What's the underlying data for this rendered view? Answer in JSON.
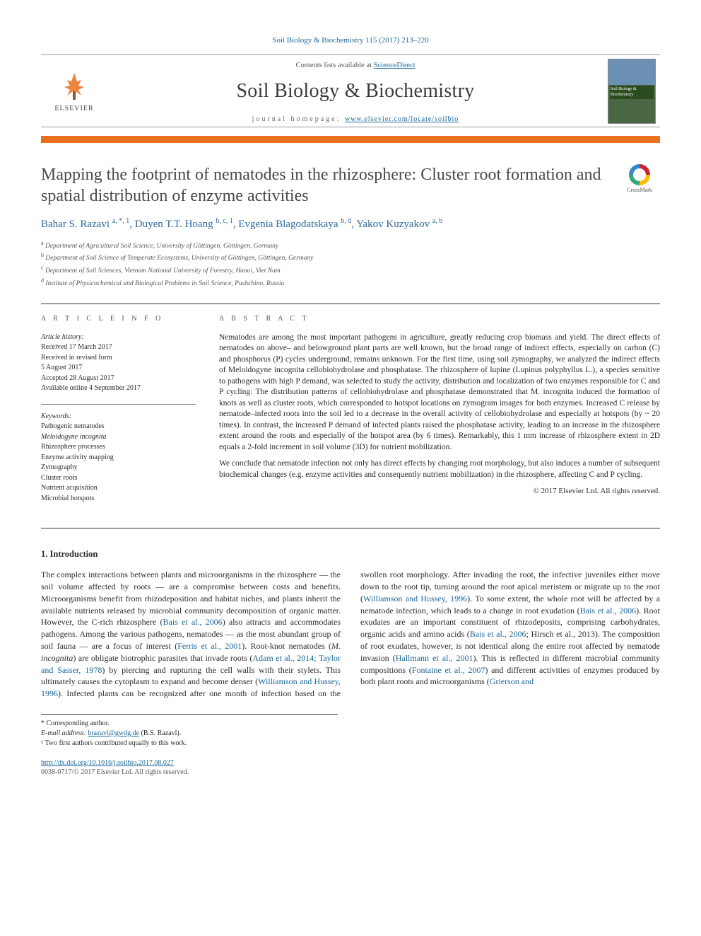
{
  "journal_ref": "Soil Biology & Biochemistry 115 (2017) 213–220",
  "banner": {
    "publisher": "ELSEVIER",
    "contents_prefix": "Contents lists available at ",
    "contents_link": "ScienceDirect",
    "journal_name": "Soil Biology & Biochemistry",
    "homepage_label": "journal homepage: ",
    "homepage_url": "www.elsevier.com/locate/soilbio",
    "cover_caption": "Soil Biology & Biochemistry"
  },
  "colors": {
    "accent_bar": "#e9701e",
    "link": "#1a6699",
    "author": "#2d6aa0",
    "rule": "#333333"
  },
  "crossmark_label": "CrossMark",
  "title": "Mapping the footprint of nematodes in the rhizosphere: Cluster root formation and spatial distribution of enzyme activities",
  "authors_html": "Bahar S. Razavi <sup>a, *, 1</sup>, Duyen T.T. Hoang <sup>b, c, 1</sup>, Evgenia Blagodatskaya <sup>b, d</sup>, Yakov Kuzyakov <sup>a, b</sup>",
  "affiliations": [
    {
      "sup": "a",
      "text": "Department of Agricultural Soil Science, University of Göttingen, Göttingen, Germany"
    },
    {
      "sup": "b",
      "text": "Department of Soil Science of Temperate Ecosystems, University of Göttingen, Göttingen, Germany"
    },
    {
      "sup": "c",
      "text": "Department of Soil Sciences, Vietnam National University of Forestry, Hanoi, Viet Nam"
    },
    {
      "sup": "d",
      "text": "Institute of Physicochemical and Biological Problems in Soil Science, Pushchino, Russia"
    }
  ],
  "article_info": {
    "heading": "A R T I C L E   I N F O",
    "history_label": "Article history:",
    "history": [
      "Received 17 March 2017",
      "Received in revised form",
      "5 August 2017",
      "Accepted 28 August 2017",
      "Available online 4 September 2017"
    ],
    "keywords_label": "Keywords:",
    "keywords": [
      "Pathogenic nematodes",
      "Meloidogyne incognita",
      "Rhizosphere processes",
      "Enzyme activity mapping",
      "Zymography",
      "Cluster roots",
      "Nutrient acquisition",
      "Microbial hotspots"
    ]
  },
  "abstract": {
    "heading": "A B S T R A C T",
    "p1": "Nematodes are among the most important pathogens in agriculture, greatly reducing crop biomass and yield. The direct effects of nematodes on above– and belowground plant parts are well known, but the broad range of indirect effects, especially on carbon (C) and phosphorus (P) cycles underground, remains unknown. For the first time, using soil zymography, we analyzed the indirect effects of Meloidogyne incognita cellobiohydrolase and phosphatase. The rhizosphere of lupine (Lupinus polyphyllus L.), a species sensitive to pathogens with high P demand, was selected to study the activity, distribution and localization of two enzymes responsible for C and P cycling: The distribution patterns of cellobiohydrolase and phosphatase demonstrated that M. incognita induced the formation of knots as well as cluster roots, which corresponded to hotspot locations on zymogram images for both enzymes. Increased C release by nematode–infected roots into the soil led to a decrease in the overall activity of cellobiohydrolase and especially at hotspots (by ~ 20 times). In contrast, the increased P demand of infected plants raised the phosphatase activity, leading to an increase in the rhizosphere extent around the roots and especially of the hotspot area (by 6 times). Remarkably, this 1 mm increase of rhizosphere extent in 2D equals a 2-fold increment in soil volume (3D) for nutrient mobilization.",
    "p2": "We conclude that nematode infection not only has direct effects by changing root morphology, but also induces a number of subsequent biochemical changes (e.g. enzyme activities and consequently nutrient mobilization) in the rhizosphere, affecting C and P cycling.",
    "copyright": "© 2017 Elsevier Ltd. All rights reserved."
  },
  "intro": {
    "heading": "1. Introduction",
    "para": "The complex interactions between plants and microorganisms in the rhizosphere — the soil volume affected by roots — are a compromise between costs and benefits. Microorganisms benefit from rhizodeposition and habitat niches, and plants inherit the available nutrients released by microbial community decomposition of organic matter. However, the C-rich rhizosphere (Bais et al., 2006) also attracts and accommodates pathogens. Among the various pathogens, nematodes — as the most abundant group of soil fauna — are a focus of interest (Ferris et al., 2001). Root-knot nematodes (M. incognita) are obligate biotrophic parasites that invade roots (Adam et al., 2014; Taylor and Sasser, 1978) by piercing and rupturing the cell walls with their stylets. This ultimately causes the cytoplasm to expand and become denser (Williamson and Hussey, 1996). Infected plants can be recognized after one month of infection based on the swollen root morphology. After invading the root, the infective juveniles either move down to the root tip, turning around the root apical meristem or migrate up to the root (Williamson and Hussey, 1996). To some extent, the whole root will be affected by a nematode infection, which leads to a change in root exudation (Bais et al., 2006). Root exudates are an important constituent of rhizodeposits, comprising carbohydrates, organic acids and amino acids (Bais et al., 2006; Hirsch et al., 2013). The composition of root exudates, however, is not identical along the entire root affected by nematode invasion (Hallmann et al., 2001). This is reflected in different microbial community compositions (Fontaine et al., 2007) and different activities of enzymes produced by both plant roots and microorganisms (Grierson and"
  },
  "footnotes": {
    "corr_label": "* Corresponding author.",
    "email_label": "E-mail address: ",
    "email": "brazavi@gwdg.de",
    "email_who": " (B.S. Razavi).",
    "shared": "¹ Two first authors contributed equally to this work."
  },
  "doi": {
    "url": "http://dx.doi.org/10.1016/j.soilbio.2017.08.027",
    "issn_line": "0038-0717/© 2017 Elsevier Ltd. All rights reserved."
  }
}
